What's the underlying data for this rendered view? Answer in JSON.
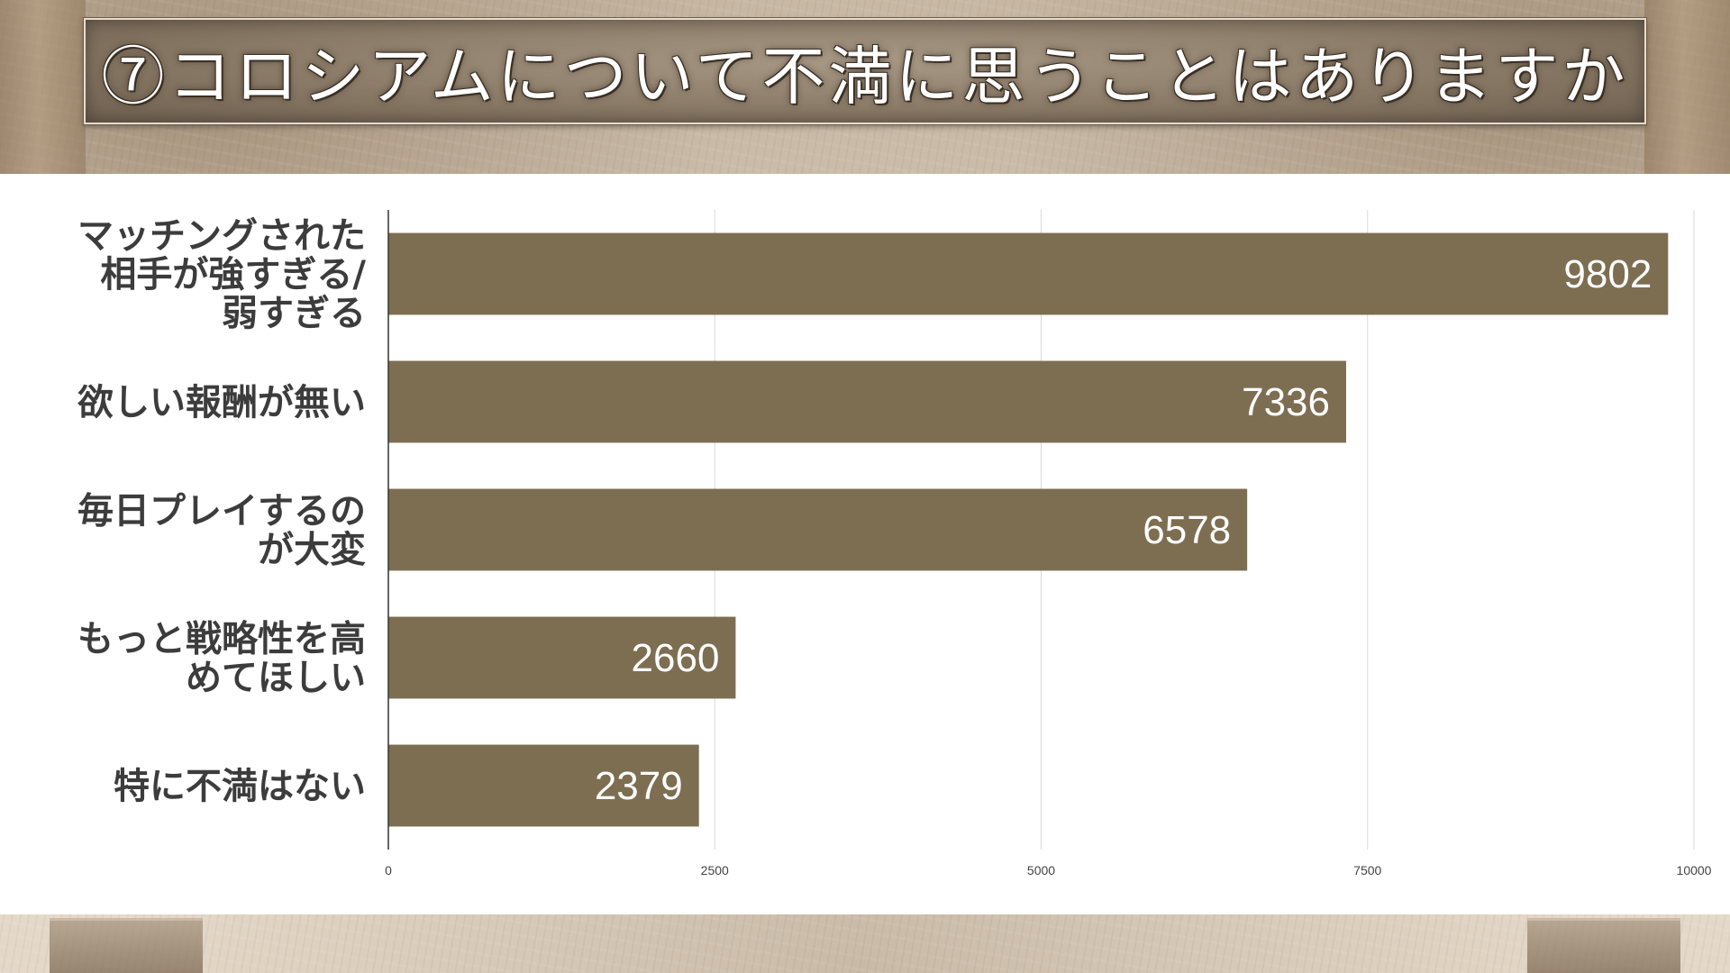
{
  "title": "⑦コロシアムについて不満に思うことはありますか",
  "colors": {
    "bar": "#7d6e52",
    "grid": "#d9d9d9",
    "axis": "#333333"
  },
  "chart_data": {
    "type": "bar",
    "orientation": "horizontal",
    "categories": [
      [
        "マッチングされた",
        "相手が強すぎる/",
        "弱すぎる"
      ],
      [
        "欲しい報酬が無い"
      ],
      [
        "毎日プレイするの",
        "が大変"
      ],
      [
        "もっと戦略性を高",
        "めてほしい"
      ],
      [
        "特に不満はない"
      ]
    ],
    "values": [
      9802,
      7336,
      6578,
      2660,
      2379
    ],
    "xlim": [
      0,
      10000
    ],
    "xticks": [
      0,
      2500,
      5000,
      7500,
      10000
    ],
    "grid": true,
    "data_labels": true
  }
}
